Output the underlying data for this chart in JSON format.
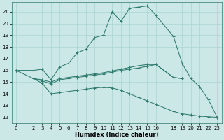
{
  "xlabel": "Humidex (Indice chaleur)",
  "xlim": [
    -0.5,
    23.5
  ],
  "ylim": [
    11.5,
    21.8
  ],
  "xticks": [
    0,
    2,
    3,
    4,
    5,
    6,
    7,
    8,
    9,
    10,
    11,
    12,
    13,
    14,
    15,
    16,
    18,
    19,
    20,
    21,
    22,
    23
  ],
  "yticks": [
    12,
    13,
    14,
    15,
    16,
    17,
    18,
    19,
    20,
    21
  ],
  "line_color": "#2d7a6e",
  "bg_color": "#cce8e6",
  "grid_color": "#a8d4d0",
  "lines": [
    {
      "x": [
        0,
        2,
        3,
        4,
        5,
        6,
        7,
        8,
        9,
        10,
        11,
        12,
        13,
        14,
        15,
        16,
        18,
        19,
        20,
        21,
        22,
        23
      ],
      "y": [
        16,
        16.0,
        16.1,
        15.2,
        16.3,
        16.6,
        17.5,
        17.8,
        18.8,
        19.0,
        21.0,
        20.2,
        21.3,
        21.4,
        21.5,
        20.7,
        18.9,
        16.6,
        15.3,
        14.6,
        13.5,
        12.0
      ]
    },
    {
      "x": [
        2,
        3,
        4,
        5,
        6,
        7,
        8,
        9,
        10,
        11,
        12,
        13,
        14,
        15,
        16,
        18,
        19
      ],
      "y": [
        15.3,
        15.2,
        15.0,
        15.3,
        15.4,
        15.5,
        15.6,
        15.7,
        15.8,
        15.95,
        16.1,
        16.25,
        16.4,
        16.5,
        16.5,
        15.4,
        15.3
      ]
    },
    {
      "x": [
        2,
        3,
        4,
        5,
        6,
        7,
        8,
        9,
        10,
        11,
        12,
        13,
        14,
        15,
        16,
        18,
        19,
        20,
        21,
        22,
        23
      ],
      "y": [
        15.3,
        14.9,
        14.0,
        14.1,
        14.2,
        14.3,
        14.4,
        14.5,
        14.55,
        14.5,
        14.3,
        14.0,
        13.7,
        13.4,
        13.1,
        12.5,
        12.3,
        12.2,
        12.1,
        12.05,
        12.0
      ]
    },
    {
      "x": [
        0,
        2,
        3,
        4,
        5,
        6,
        7,
        8,
        9,
        10,
        11,
        12,
        13,
        14,
        15,
        16,
        18,
        19
      ],
      "y": [
        16.0,
        15.3,
        15.1,
        14.85,
        15.2,
        15.3,
        15.4,
        15.5,
        15.6,
        15.7,
        15.85,
        16.0,
        16.1,
        16.2,
        16.35,
        16.5,
        15.4,
        15.3
      ]
    }
  ]
}
